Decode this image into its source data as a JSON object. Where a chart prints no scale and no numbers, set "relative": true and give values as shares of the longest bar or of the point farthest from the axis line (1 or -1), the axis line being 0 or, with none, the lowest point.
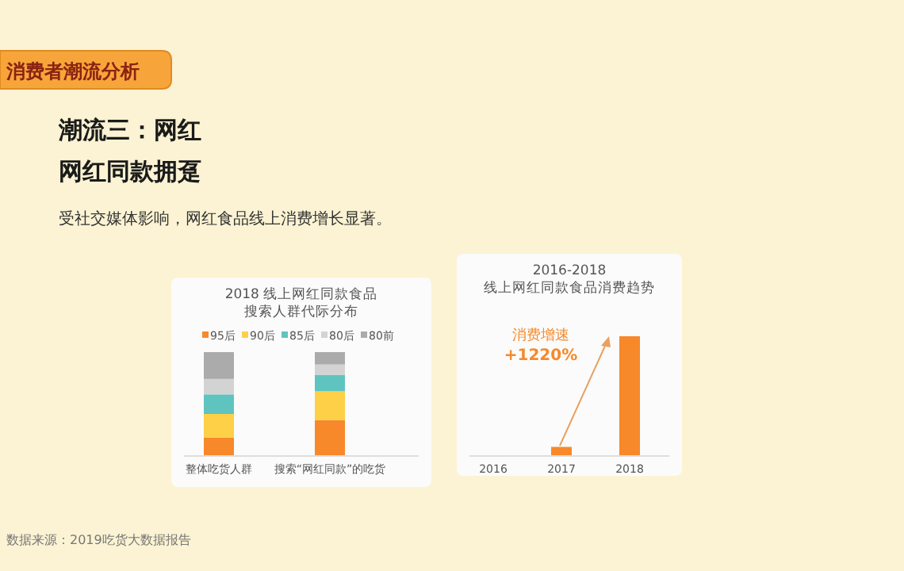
{
  "chart_data": [
    {
      "type": "other",
      "title": "潮流三：网红",
      "subtitle": "网红同款拥趸",
      "annotations": [
        "消费者潮流分析",
        "受社交媒体影响，网红食品线上消费增长显著。",
        "数据来源：2019吃货大数据报告"
      ]
    },
    {
      "type": "bar",
      "title": "2018 线上网红同款食品",
      "subtitle": "搜索人群代际分布",
      "categories": [
        "整体吃货人群",
        "搜索“网红同款”的吃货"
      ],
      "stacked": true,
      "relative": true,
      "legend": "top",
      "series": [
        {
          "name": "95后",
          "color": "#f7892a",
          "values": [
            0.17,
            0.34
          ]
        },
        {
          "name": "90后",
          "color": "#fdd047",
          "values": [
            0.23,
            0.28
          ]
        },
        {
          "name": "85后",
          "color": "#5fc4c0",
          "values": [
            0.19,
            0.16
          ]
        },
        {
          "name": "80后",
          "color": "#d3d3d3",
          "values": [
            0.15,
            0.1
          ]
        },
        {
          "name": "80前",
          "color": "#ababab",
          "values": [
            0.26,
            0.12
          ]
        }
      ]
    },
    {
      "type": "bar",
      "title": "2016-2018",
      "subtitle": "线上网红同款食品消费趋势",
      "categories": [
        "2016",
        "2017",
        "2018"
      ],
      "values": [
        0,
        0.07,
        1
      ],
      "color": "#f7892a",
      "relative": true,
      "annotations": [
        "消费增速\n+1220%"
      ]
    }
  ]
}
